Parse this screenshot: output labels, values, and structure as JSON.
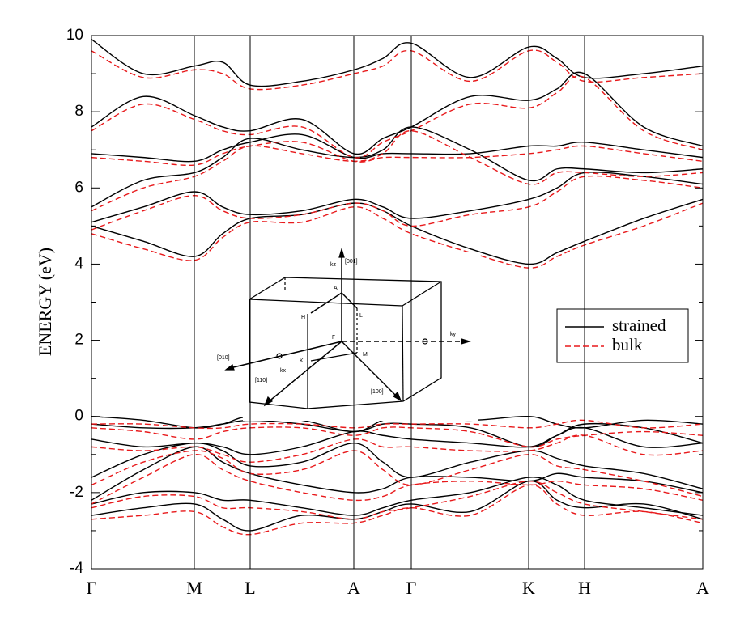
{
  "chart_data": {
    "type": "line",
    "ylabel": "ENERGY (eV)",
    "x": [
      0,
      64,
      127,
      162,
      196,
      260,
      324,
      360,
      395,
      468,
      540,
      575,
      609,
      682,
      755
    ],
    "xlim": [
      0,
      755
    ],
    "xticks": [
      {
        "value": 0,
        "label": "Γ"
      },
      {
        "value": 127,
        "label": "M"
      },
      {
        "value": 196,
        "label": "L"
      },
      {
        "value": 324,
        "label": "A"
      },
      {
        "value": 395,
        "label": "Γ"
      },
      {
        "value": 540,
        "label": "K"
      },
      {
        "value": 609,
        "label": "H"
      },
      {
        "value": 755,
        "label": "A"
      }
    ],
    "ylim": [
      -4,
      10
    ],
    "yticks": [
      -4,
      -2,
      0,
      2,
      4,
      6,
      8,
      10
    ],
    "yminorticks": [
      -3,
      -1,
      1,
      3,
      5,
      7,
      9
    ],
    "grid": "x",
    "legend": "right",
    "series": [
      {
        "name": "strained",
        "color": "#000000",
        "dash": "solid",
        "bands": [
          [
            0,
            -0.1,
            -0.3,
            -0.2,
            0,
            -0.1,
            -0.4,
            -0.1,
            0,
            -0.1,
            0,
            -0.2,
            -0.3,
            -0.1,
            -0.2
          ],
          [
            -0.2,
            -0.3,
            -0.3,
            -0.2,
            -0.1,
            -0.2,
            -0.4,
            -0.2,
            -0.2,
            -0.3,
            -0.8,
            -0.5,
            -0.2,
            -0.3,
            -0.7
          ],
          [
            -0.6,
            -0.8,
            -0.7,
            -0.8,
            -1.0,
            -0.8,
            -0.4,
            -0.5,
            -0.6,
            -0.7,
            -0.8,
            -0.5,
            -0.3,
            -0.8,
            -0.7
          ],
          [
            -1.6,
            -1.0,
            -0.7,
            -0.9,
            -1.3,
            -1.2,
            -0.7,
            -1.2,
            -1.6,
            -1.2,
            -0.9,
            -1.1,
            -1.3,
            -1.5,
            -1.9
          ],
          [
            -2.2,
            -1.4,
            -0.8,
            -1.2,
            -1.5,
            -1.8,
            -2.0,
            -1.9,
            -1.6,
            -1.6,
            -1.7,
            -1.5,
            -1.6,
            -1.7,
            -2.0
          ],
          [
            -2.3,
            -2.0,
            -2.0,
            -2.2,
            -2.2,
            -2.4,
            -2.6,
            -2.4,
            -2.2,
            -2.0,
            -1.6,
            -1.8,
            -2.2,
            -2.4,
            -2.6
          ],
          [
            -2.6,
            -2.4,
            -2.3,
            -2.7,
            -3.0,
            -2.6,
            -2.7,
            -2.5,
            -2.3,
            -2.5,
            -1.7,
            -2.2,
            -2.4,
            -2.3,
            -2.7
          ],
          [
            5.0,
            4.6,
            4.2,
            4.8,
            5.2,
            5.3,
            5.6,
            5.4,
            5.0,
            4.4,
            4.0,
            4.3,
            4.6,
            5.2,
            5.7
          ],
          [
            5.1,
            5.5,
            5.9,
            5.5,
            5.3,
            5.4,
            5.7,
            5.5,
            5.2,
            5.4,
            5.7,
            6.0,
            6.4,
            6.3,
            6.1
          ],
          [
            5.5,
            6.2,
            6.4,
            6.8,
            7.3,
            7.0,
            6.8,
            7.0,
            7.6,
            7.0,
            6.2,
            6.5,
            6.5,
            6.4,
            6.5
          ],
          [
            6.9,
            6.8,
            6.7,
            7.0,
            7.2,
            7.4,
            6.8,
            6.9,
            6.9,
            6.9,
            7.1,
            7.1,
            7.2,
            7.0,
            6.8
          ],
          [
            7.6,
            8.4,
            7.9,
            7.6,
            7.5,
            7.8,
            6.9,
            7.3,
            7.6,
            8.4,
            8.3,
            8.6,
            9.0,
            7.6,
            7.1
          ],
          [
            9.9,
            9.0,
            9.2,
            9.3,
            8.7,
            8.8,
            9.1,
            9.4,
            9.8,
            8.9,
            9.7,
            9.4,
            8.9,
            9.0,
            9.2
          ]
        ]
      },
      {
        "name": "bulk",
        "color": "#e8191b",
        "dash": "dashed",
        "bands": [
          [
            -0.2,
            -0.2,
            -0.3,
            -0.3,
            -0.2,
            -0.2,
            -0.3,
            -0.2,
            -0.2,
            -0.2,
            -0.3,
            -0.2,
            -0.1,
            -0.3,
            -0.2
          ],
          [
            -0.3,
            -0.4,
            -0.6,
            -0.4,
            -0.3,
            -0.3,
            -0.5,
            -0.3,
            -0.3,
            -0.4,
            -0.8,
            -0.6,
            -0.5,
            -0.4,
            -0.5
          ],
          [
            -0.8,
            -0.9,
            -0.8,
            -1.0,
            -1.2,
            -1.0,
            -0.6,
            -0.8,
            -0.8,
            -0.9,
            -0.9,
            -0.7,
            -0.5,
            -1.0,
            -0.9
          ],
          [
            -1.8,
            -1.2,
            -0.9,
            -1.1,
            -1.5,
            -1.4,
            -0.9,
            -1.4,
            -1.8,
            -1.4,
            -1.0,
            -1.3,
            -1.4,
            -1.7,
            -2.1
          ],
          [
            -2.3,
            -1.6,
            -1.0,
            -1.4,
            -1.7,
            -2.0,
            -2.2,
            -2.1,
            -1.8,
            -1.7,
            -1.8,
            -1.7,
            -1.8,
            -1.9,
            -2.2
          ],
          [
            -2.4,
            -2.1,
            -2.1,
            -2.4,
            -2.4,
            -2.5,
            -2.7,
            -2.5,
            -2.4,
            -2.1,
            -1.7,
            -2.0,
            -2.3,
            -2.5,
            -2.7
          ],
          [
            -2.7,
            -2.6,
            -2.5,
            -2.9,
            -3.1,
            -2.8,
            -2.8,
            -2.6,
            -2.4,
            -2.6,
            -1.8,
            -2.3,
            -2.6,
            -2.5,
            -2.8
          ],
          [
            4.8,
            4.4,
            4.1,
            4.7,
            5.1,
            5.1,
            5.5,
            5.2,
            4.8,
            4.3,
            3.9,
            4.2,
            4.5,
            5.0,
            5.6
          ],
          [
            4.9,
            5.4,
            5.8,
            5.4,
            5.2,
            5.3,
            5.6,
            5.4,
            5.0,
            5.3,
            5.5,
            5.9,
            6.3,
            6.2,
            6.0
          ],
          [
            5.4,
            6.0,
            6.3,
            6.7,
            7.1,
            6.9,
            6.7,
            6.9,
            7.5,
            6.8,
            6.1,
            6.4,
            6.4,
            6.3,
            6.4
          ],
          [
            6.8,
            6.7,
            6.6,
            6.9,
            7.1,
            7.2,
            6.7,
            6.8,
            6.8,
            6.8,
            6.9,
            7.0,
            7.1,
            6.9,
            6.7
          ],
          [
            7.5,
            8.2,
            7.8,
            7.5,
            7.4,
            7.6,
            6.8,
            7.2,
            7.5,
            8.2,
            8.1,
            8.5,
            8.9,
            7.5,
            7.0
          ],
          [
            9.6,
            8.9,
            9.1,
            9.0,
            8.6,
            8.7,
            9.0,
            9.2,
            9.6,
            8.8,
            9.6,
            9.3,
            8.8,
            8.9,
            9.0
          ]
        ]
      }
    ],
    "inset": {
      "labels": [
        "[001]",
        "kz",
        "A",
        "H",
        "L",
        "Γ",
        "M",
        "K",
        "ky",
        "[010]",
        "kx",
        "[110]",
        "[100]"
      ]
    }
  }
}
